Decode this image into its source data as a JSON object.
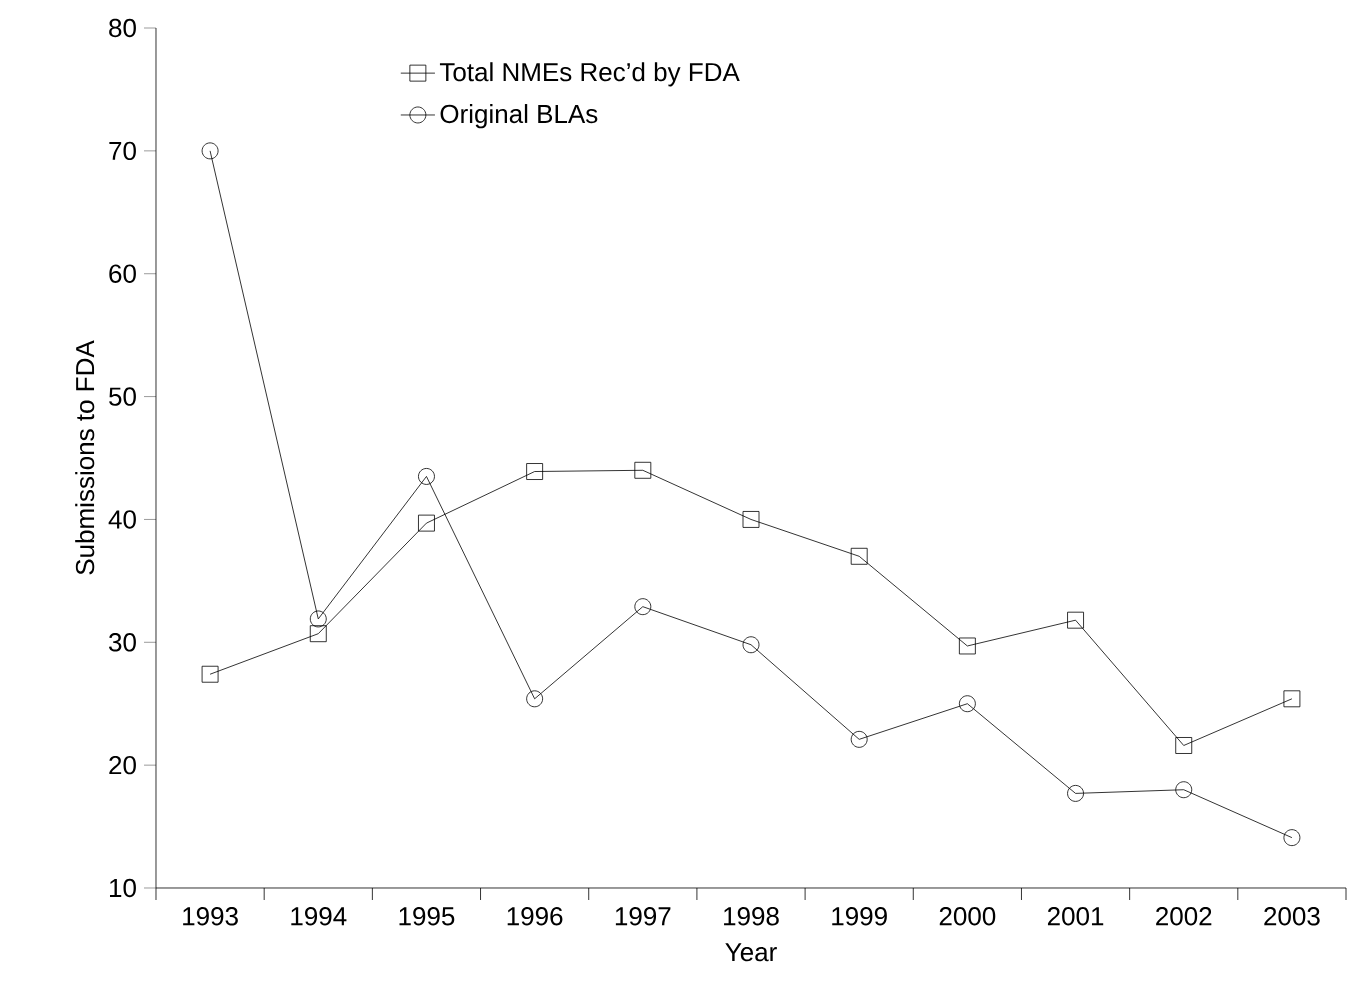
{
  "chart_data": {
    "type": "line",
    "xlabel": "Year",
    "ylabel": "Submissions to FDA",
    "categories": [
      "1993",
      "1994",
      "1995",
      "1996",
      "1997",
      "1998",
      "1999",
      "2000",
      "2001",
      "2002",
      "2003"
    ],
    "series": [
      {
        "name": "Total NMEs Rec’d by FDA",
        "color": "#000000",
        "marker": "square",
        "values": [
          27.4,
          30.7,
          39.7,
          43.9,
          44,
          40,
          37,
          29.7,
          31.8,
          21.6,
          25.4
        ]
      },
      {
        "name": "Original BLAs",
        "color": "#000000",
        "marker": "circle",
        "values": [
          70,
          31.9,
          43.5,
          25.4,
          32.9,
          29.8,
          22.1,
          25,
          17.7,
          18,
          14.1
        ]
      }
    ],
    "ylim": [
      10,
      80
    ],
    "yticks": [
      10,
      20,
      30,
      40,
      50,
      60,
      70,
      80
    ],
    "grid": false,
    "legend": "top left",
    "line_style": "solid"
  }
}
